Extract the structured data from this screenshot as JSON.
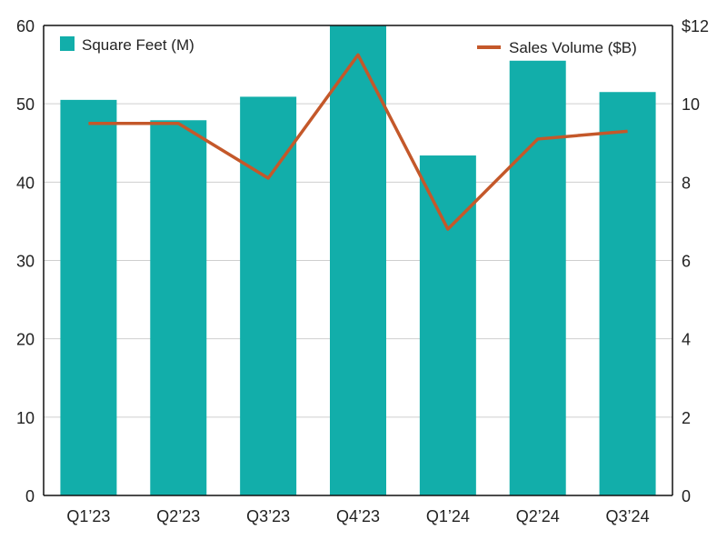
{
  "chart_data": {
    "type": "bar+line",
    "categories": [
      "Q1’23",
      "Q2’23",
      "Q3’23",
      "Q4’23",
      "Q1’24",
      "Q2’24",
      "Q3’24"
    ],
    "series": [
      {
        "name": "Square Feet (M)",
        "type": "bar",
        "axis": "left",
        "color": "#12aeaa",
        "values": [
          50.5,
          47.9,
          50.9,
          60,
          43.4,
          55.5,
          51.5
        ]
      },
      {
        "name": "Sales Volume ($B)",
        "type": "line",
        "axis": "right",
        "color": "#c4582a",
        "values": [
          9.5,
          9.5,
          8.1,
          11.25,
          6.8,
          9.1,
          9.3
        ]
      }
    ],
    "left_axis": {
      "ylim": [
        0,
        60
      ],
      "ticks": [
        "0",
        "10",
        "20",
        "30",
        "40",
        "50",
        "60"
      ]
    },
    "right_axis": {
      "ylim": [
        0,
        12
      ],
      "ticks": [
        "0",
        "2",
        "4",
        "6",
        "8",
        "10",
        "$12"
      ]
    },
    "grid": true,
    "legend": {
      "bar_position": "top-left",
      "line_position": "top-right"
    }
  }
}
